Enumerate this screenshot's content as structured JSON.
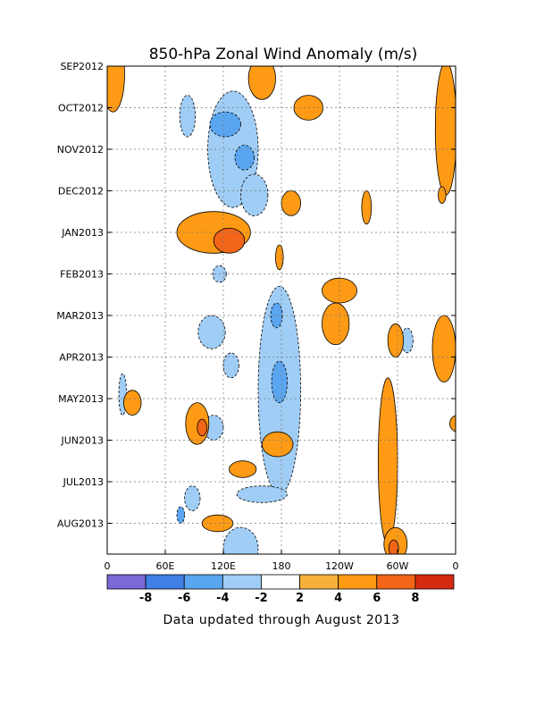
{
  "chart_data": {
    "type": "heatmap",
    "title": "850-hPa Zonal Wind Anomaly (m/s)",
    "xlabel": "",
    "ylabel": "",
    "x_ticks": [
      "0",
      "60E",
      "120E",
      "180",
      "120W",
      "60W",
      "0"
    ],
    "x_range_deg": [
      0,
      360
    ],
    "y_ticks": [
      "SEP2012",
      "OCT2012",
      "NOV2012",
      "DEC2012",
      "JAN2013",
      "FEB2013",
      "MAR2013",
      "APR2013",
      "MAY2013",
      "JUN2013",
      "JUL2013",
      "AUG2013"
    ],
    "grid": true,
    "contour_label": "0",
    "colorbar": {
      "levels": [
        "-8",
        "-6",
        "-4",
        "-2",
        "2",
        "4",
        "6",
        "8"
      ],
      "colors": [
        "#7b68d8",
        "#3f7fe6",
        "#5aa5f0",
        "#a0cdf5",
        "#ffffff",
        "#f7b13a",
        "#ff9a14",
        "#f36518",
        "#d42a10"
      ]
    },
    "footnote": "Data updated through August 2013",
    "positive_regions": [
      {
        "lon": 6,
        "month": 0.2,
        "dlon": 12,
        "dmonth": 0.9,
        "level": 4
      },
      {
        "lon": 110,
        "month": 4.0,
        "dlon": 38,
        "dmonth": 0.5,
        "level": 4
      },
      {
        "lon": 126,
        "month": 4.2,
        "dlon": 16,
        "dmonth": 0.3,
        "level": 6
      },
      {
        "lon": 160,
        "month": 0.3,
        "dlon": 14,
        "dmonth": 0.5,
        "level": 4
      },
      {
        "lon": 208,
        "month": 1.0,
        "dlon": 15,
        "dmonth": 0.3,
        "level": 4
      },
      {
        "lon": 190,
        "month": 3.3,
        "dlon": 10,
        "dmonth": 0.3,
        "level": 4
      },
      {
        "lon": 268,
        "month": 3.4,
        "dlon": 5,
        "dmonth": 0.4,
        "level": 4
      },
      {
        "lon": 178,
        "month": 4.6,
        "dlon": 4,
        "dmonth": 0.3,
        "level": 4
      },
      {
        "lon": 350,
        "month": 1.5,
        "dlon": 11,
        "dmonth": 1.6,
        "level": 4
      },
      {
        "lon": 240,
        "month": 5.4,
        "dlon": 18,
        "dmonth": 0.3,
        "level": 4
      },
      {
        "lon": 236,
        "month": 6.2,
        "dlon": 14,
        "dmonth": 0.5,
        "level": 4
      },
      {
        "lon": 298,
        "month": 6.6,
        "dlon": 8,
        "dmonth": 0.4,
        "level": 4
      },
      {
        "lon": 348,
        "month": 6.8,
        "dlon": 12,
        "dmonth": 0.8,
        "level": 4
      },
      {
        "lon": 93,
        "month": 8.6,
        "dlon": 12,
        "dmonth": 0.5,
        "level": 4
      },
      {
        "lon": 98,
        "month": 8.7,
        "dlon": 5,
        "dmonth": 0.2,
        "level": 6
      },
      {
        "lon": 26,
        "month": 8.1,
        "dlon": 9,
        "dmonth": 0.3,
        "level": 4
      },
      {
        "lon": 176,
        "month": 9.1,
        "dlon": 16,
        "dmonth": 0.3,
        "level": 4
      },
      {
        "lon": 140,
        "month": 9.7,
        "dlon": 14,
        "dmonth": 0.2,
        "level": 4
      },
      {
        "lon": 290,
        "month": 9.5,
        "dlon": 10,
        "dmonth": 2.0,
        "level": 4
      },
      {
        "lon": 298,
        "month": 11.5,
        "dlon": 12,
        "dmonth": 0.4,
        "level": 4
      },
      {
        "lon": 296,
        "month": 11.6,
        "dlon": 5,
        "dmonth": 0.2,
        "level": 6
      },
      {
        "lon": 114,
        "month": 11.0,
        "dlon": 16,
        "dmonth": 0.2,
        "level": 4
      },
      {
        "lon": 362,
        "month": 8.6,
        "dlon": 8,
        "dmonth": 0.2,
        "level": 4
      },
      {
        "lon": 346,
        "month": 3.1,
        "dlon": 4,
        "dmonth": 0.2,
        "level": 4
      }
    ],
    "negative_regions": [
      {
        "lon": 130,
        "month": 2.0,
        "dlon": 26,
        "dmonth": 1.4,
        "level": -2
      },
      {
        "lon": 122,
        "month": 1.4,
        "dlon": 16,
        "dmonth": 0.3,
        "level": -4
      },
      {
        "lon": 142,
        "month": 2.2,
        "dlon": 10,
        "dmonth": 0.3,
        "level": -4
      },
      {
        "lon": 152,
        "month": 3.1,
        "dlon": 14,
        "dmonth": 0.5,
        "level": -2
      },
      {
        "lon": 83,
        "month": 1.2,
        "dlon": 8,
        "dmonth": 0.5,
        "level": -2
      },
      {
        "lon": 178,
        "month": 7.8,
        "dlon": 22,
        "dmonth": 2.5,
        "level": -2
      },
      {
        "lon": 178,
        "month": 7.6,
        "dlon": 8,
        "dmonth": 0.5,
        "level": -4
      },
      {
        "lon": 175,
        "month": 6.0,
        "dlon": 6,
        "dmonth": 0.3,
        "level": -4
      },
      {
        "lon": 108,
        "month": 6.4,
        "dlon": 14,
        "dmonth": 0.4,
        "level": -2
      },
      {
        "lon": 16,
        "month": 7.9,
        "dlon": 4,
        "dmonth": 0.5,
        "level": -2
      },
      {
        "lon": 88,
        "month": 10.4,
        "dlon": 8,
        "dmonth": 0.3,
        "level": -2
      },
      {
        "lon": 76,
        "month": 10.8,
        "dlon": 4,
        "dmonth": 0.2,
        "level": -4
      },
      {
        "lon": 138,
        "month": 11.6,
        "dlon": 18,
        "dmonth": 0.5,
        "level": -2
      },
      {
        "lon": 160,
        "month": 10.3,
        "dlon": 26,
        "dmonth": 0.2,
        "level": -2
      },
      {
        "lon": 128,
        "month": 7.2,
        "dlon": 8,
        "dmonth": 0.3,
        "level": -2
      },
      {
        "lon": 110,
        "month": 8.7,
        "dlon": 10,
        "dmonth": 0.3,
        "level": -2
      },
      {
        "lon": 116,
        "month": 5.0,
        "dlon": 7,
        "dmonth": 0.2,
        "level": -2
      },
      {
        "lon": 310,
        "month": 6.6,
        "dlon": 6,
        "dmonth": 0.3,
        "level": -2
      }
    ]
  }
}
